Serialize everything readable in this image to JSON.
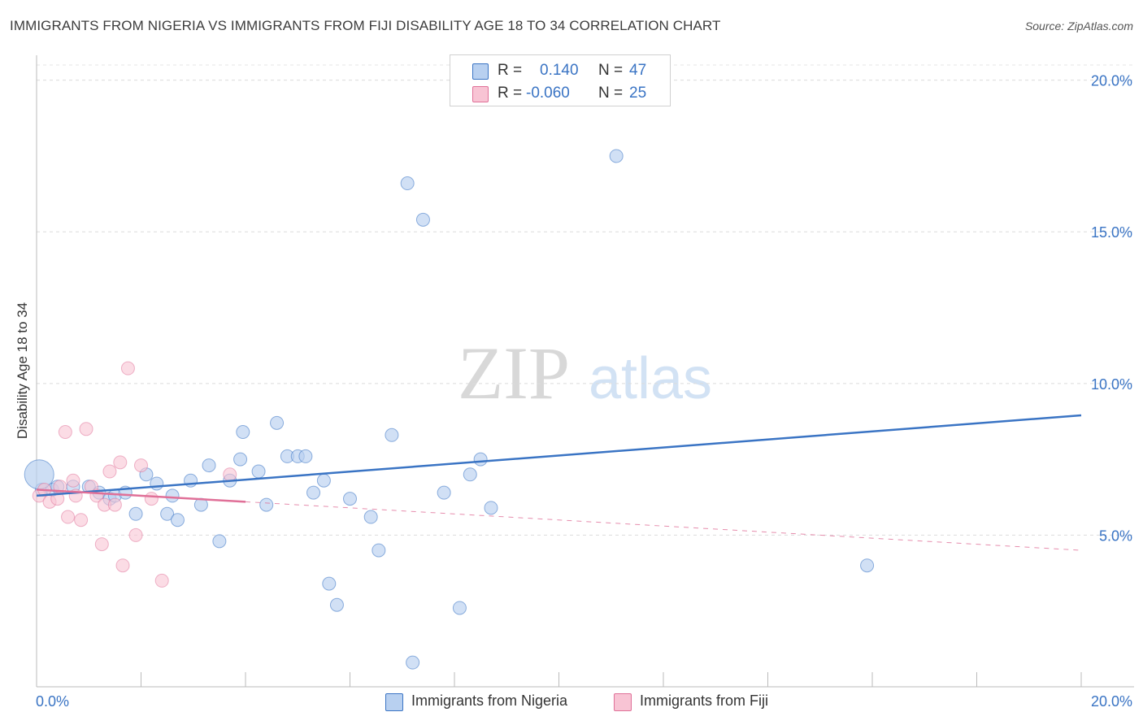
{
  "header": {
    "title": "IMMIGRANTS FROM NIGERIA VS IMMIGRANTS FROM FIJI DISABILITY AGE 18 TO 34 CORRELATION CHART",
    "source": "Source: ZipAtlas.com"
  },
  "watermark": {
    "zip": "ZIP",
    "atlas": "atlas"
  },
  "legend": {
    "nigeria": {
      "r_label": "R =",
      "r_value": "0.140",
      "n_label": "N =",
      "n_value": "47"
    },
    "fiji": {
      "r_label": "R =",
      "r_value": "-0.060",
      "n_label": "N =",
      "n_value": "25"
    }
  },
  "bottom_legend": {
    "nigeria": "Immigrants from Nigeria",
    "fiji": "Immigrants from Fiji"
  },
  "chart_data": {
    "type": "scatter",
    "title": "IMMIGRANTS FROM NIGERIA VS IMMIGRANTS FROM FIJI DISABILITY AGE 18 TO 34 CORRELATION CHART",
    "xlabel": "",
    "ylabel": "Disability Age 18 to 34",
    "xlim": [
      0,
      20
    ],
    "ylim": [
      0,
      20.5
    ],
    "x_tick_labels": [
      "0.0%",
      "20.0%"
    ],
    "y_ticks": [
      5,
      10,
      15,
      20
    ],
    "y_tick_labels": [
      "5.0%",
      "10.0%",
      "15.0%",
      "20.0%"
    ],
    "colors": {
      "nigeria": "#3a74c4",
      "nigeria_fill": "#b8d0f0",
      "fiji": "#e07098",
      "fiji_fill": "#f8c4d4",
      "axis_text": "#3a74c4"
    },
    "series": [
      {
        "name": "Immigrants from Nigeria",
        "points": [
          [
            0.1,
            6.5
          ],
          [
            0.3,
            6.5
          ],
          [
            0.4,
            6.6
          ],
          [
            0.7,
            6.6
          ],
          [
            1.0,
            6.6
          ],
          [
            1.2,
            6.4
          ],
          [
            1.4,
            6.2
          ],
          [
            1.5,
            6.3
          ],
          [
            1.7,
            6.4
          ],
          [
            1.9,
            5.7
          ],
          [
            2.1,
            7.0
          ],
          [
            2.3,
            6.7
          ],
          [
            2.5,
            5.7
          ],
          [
            2.6,
            6.3
          ],
          [
            2.7,
            5.5
          ],
          [
            2.95,
            6.8
          ],
          [
            3.15,
            6.0
          ],
          [
            3.3,
            7.3
          ],
          [
            3.5,
            4.8
          ],
          [
            3.7,
            6.8
          ],
          [
            3.9,
            7.5
          ],
          [
            3.95,
            8.4
          ],
          [
            4.25,
            7.1
          ],
          [
            4.4,
            6.0
          ],
          [
            4.6,
            8.7
          ],
          [
            4.8,
            7.6
          ],
          [
            5.0,
            7.6
          ],
          [
            5.15,
            7.6
          ],
          [
            5.3,
            6.4
          ],
          [
            5.5,
            6.8
          ],
          [
            5.6,
            3.4
          ],
          [
            5.75,
            2.7
          ],
          [
            6.0,
            6.2
          ],
          [
            6.4,
            5.6
          ],
          [
            6.55,
            4.5
          ],
          [
            6.8,
            8.3
          ],
          [
            7.1,
            16.6
          ],
          [
            7.2,
            0.8
          ],
          [
            7.4,
            15.4
          ],
          [
            7.8,
            6.4
          ],
          [
            8.1,
            2.6
          ],
          [
            8.3,
            7.0
          ],
          [
            8.5,
            7.5
          ],
          [
            8.7,
            5.9
          ],
          [
            11.1,
            17.5
          ],
          [
            15.9,
            4.0
          ],
          [
            0.05,
            7.0
          ]
        ],
        "trend": {
          "x": [
            0,
            20
          ],
          "y": [
            6.3,
            8.95
          ]
        }
      },
      {
        "name": "Immigrants from Fiji",
        "points": [
          [
            0.05,
            6.3
          ],
          [
            0.15,
            6.5
          ],
          [
            0.25,
            6.1
          ],
          [
            0.4,
            6.2
          ],
          [
            0.45,
            6.6
          ],
          [
            0.55,
            8.4
          ],
          [
            0.6,
            5.6
          ],
          [
            0.7,
            6.8
          ],
          [
            0.75,
            6.3
          ],
          [
            0.85,
            5.5
          ],
          [
            0.95,
            8.5
          ],
          [
            1.05,
            6.6
          ],
          [
            1.15,
            6.3
          ],
          [
            1.25,
            4.7
          ],
          [
            1.3,
            6.0
          ],
          [
            1.4,
            7.1
          ],
          [
            1.5,
            6.0
          ],
          [
            1.6,
            7.4
          ],
          [
            1.65,
            4.0
          ],
          [
            1.75,
            10.5
          ],
          [
            1.9,
            5.0
          ],
          [
            2.0,
            7.3
          ],
          [
            2.2,
            6.2
          ],
          [
            2.4,
            3.5
          ],
          [
            3.7,
            7.0
          ]
        ],
        "trend_solid": {
          "x": [
            0,
            4
          ],
          "y": [
            6.5,
            6.1
          ]
        },
        "trend_dashed": {
          "x": [
            4,
            20
          ],
          "y": [
            6.1,
            4.5
          ]
        }
      }
    ]
  }
}
